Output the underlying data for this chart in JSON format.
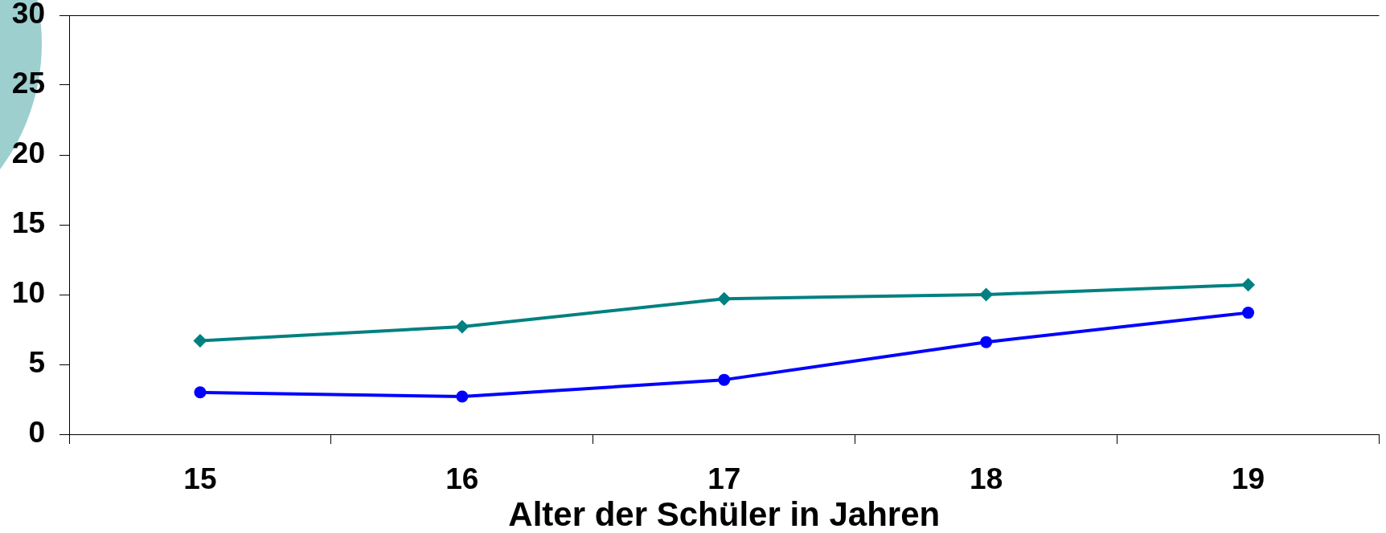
{
  "chart_data": {
    "type": "line",
    "xlabel": "Alter der Schüler in Jahren",
    "categories": [
      "15",
      "16",
      "17",
      "18",
      "19"
    ],
    "series": [
      {
        "color": "#008080",
        "marker": "diamond",
        "values": [
          6.7,
          7.7,
          9.7,
          10.0,
          10.7
        ]
      },
      {
        "color": "#0000ff",
        "marker": "circle",
        "values": [
          3.0,
          2.7,
          3.9,
          6.6,
          8.7
        ]
      }
    ],
    "ylim": [
      0,
      30
    ],
    "yticks": [
      0,
      5,
      10,
      15,
      20,
      25,
      30
    ],
    "line_style": "solid"
  }
}
